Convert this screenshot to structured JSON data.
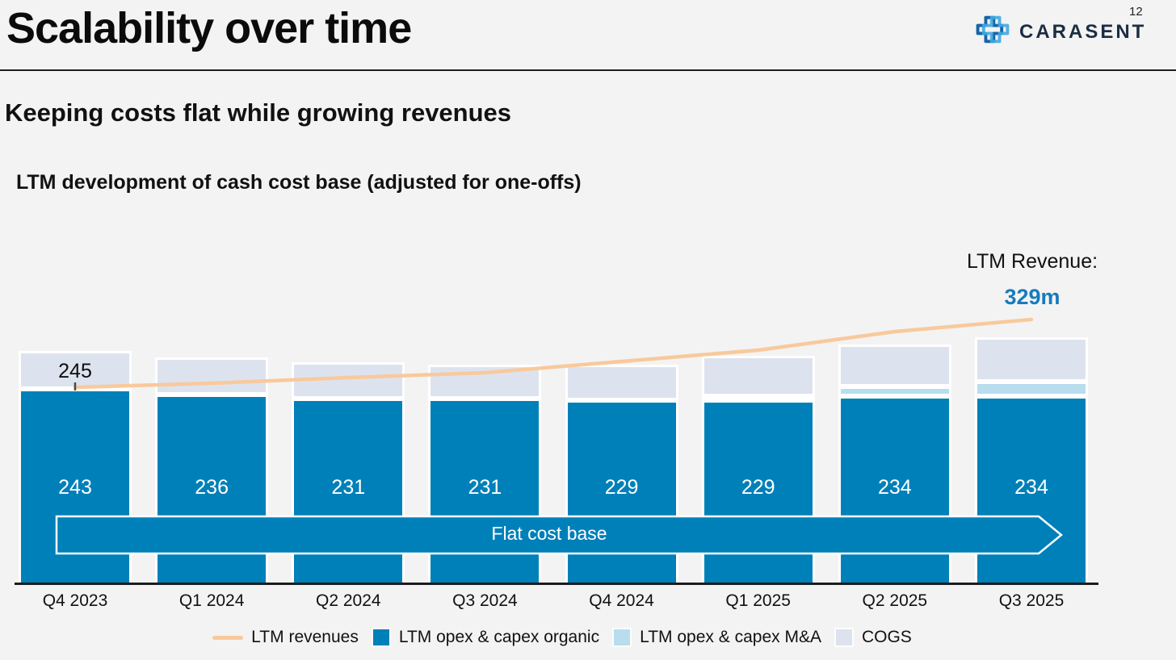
{
  "header": {
    "title": "Scalability over time",
    "brand": "CARASENT",
    "page_number": "12"
  },
  "subtitle": "Keeping costs flat while growing revenues",
  "chart_title": "LTM development of cash cost base (adjusted for one-offs)",
  "annotation": {
    "label": "LTM Revenue:",
    "value": "329m"
  },
  "chart_data": {
    "type": "bar",
    "subtype": "stacked-bars-with-line",
    "title": "LTM development of cash cost base (adjusted for one-offs)",
    "categories": [
      "Q4 2023",
      "Q1 2024",
      "Q2 2024",
      "Q3 2024",
      "Q4 2024",
      "Q1 2025",
      "Q2 2025",
      "Q3 2025"
    ],
    "series": [
      {
        "name": "LTM opex & capex organic",
        "color": "#0080b9",
        "values": [
          243,
          236,
          231,
          231,
          229,
          229,
          234,
          234
        ],
        "data_labels": true
      },
      {
        "name": "LTM opex & capex M&A",
        "color": "#b7ddef",
        "values": [
          0,
          0,
          0,
          0,
          0,
          5,
          12,
          18
        ]
      },
      {
        "name": "COGS",
        "color": "#dde3ee",
        "values": [
          47,
          46,
          45,
          42,
          44,
          50,
          52,
          55
        ]
      }
    ],
    "line": {
      "name": "LTM revenues",
      "color": "#f9c99c",
      "values": [
        245,
        250,
        257,
        263,
        277,
        291,
        314,
        329
      ],
      "first_point_label": "245",
      "last_point_label": "329m"
    },
    "banner": {
      "label": "Flat cost base",
      "color": "#0080b9"
    },
    "ylim": [
      0,
      330
    ],
    "grid": false,
    "legend_position": "bottom"
  },
  "legend": {
    "items": [
      {
        "label": "LTM revenues",
        "swatch": "line",
        "color": "#f9c99c"
      },
      {
        "label": "LTM opex & capex organic",
        "swatch": "square",
        "color": "#0080b9"
      },
      {
        "label": "LTM opex & capex M&A",
        "swatch": "square",
        "color": "#b7ddef"
      },
      {
        "label": "COGS",
        "swatch": "square",
        "color": "#dde3ee"
      }
    ]
  }
}
